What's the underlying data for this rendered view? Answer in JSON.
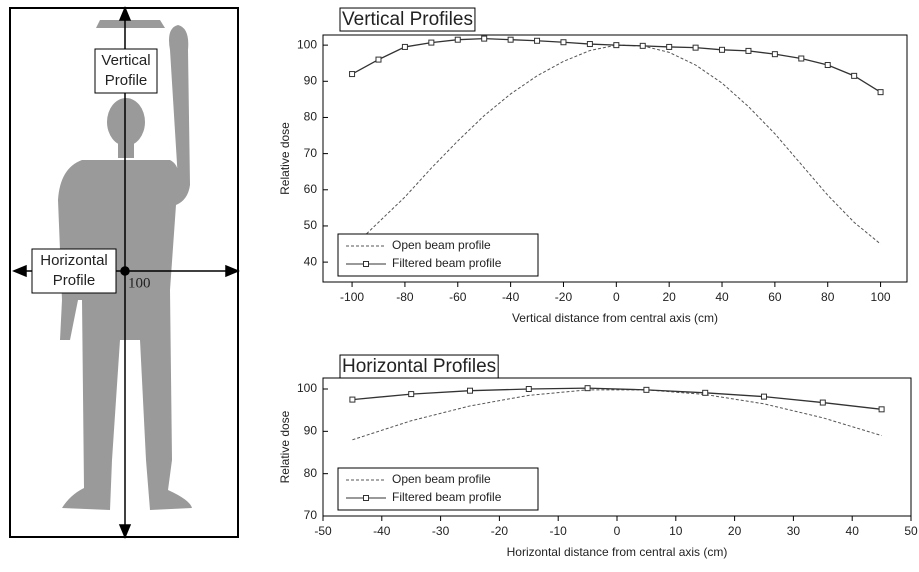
{
  "diagram": {
    "vertical_label": [
      "Vertical",
      "Profile"
    ],
    "horizontal_label": [
      "Horizontal",
      "Profile"
    ],
    "center_value": "100"
  },
  "chart_data": [
    {
      "type": "line",
      "title": "Vertical Profiles",
      "x_label": "Vertical distance from central axis (cm)",
      "y_label": "Relative dose",
      "x": [
        -100,
        -90,
        -80,
        -70,
        -60,
        -50,
        -40,
        -30,
        -20,
        -10,
        0,
        10,
        20,
        30,
        40,
        50,
        60,
        70,
        80,
        90,
        100
      ],
      "series": [
        {
          "name": "Open beam profile",
          "color": "#555555",
          "style": "dashed",
          "marker": "none",
          "values": [
            44,
            51,
            58,
            66,
            73.5,
            80.5,
            86.5,
            91.5,
            95.5,
            98.5,
            100,
            99.8,
            98,
            94.5,
            89.5,
            83,
            75.5,
            67,
            58.5,
            51,
            45
          ]
        },
        {
          "name": "Filtered beam profile",
          "color": "#333333",
          "style": "solid",
          "marker": "square",
          "values": [
            92,
            96,
            99.5,
            100.7,
            101.5,
            101.8,
            101.5,
            101.2,
            100.8,
            100.3,
            100,
            99.8,
            99.5,
            99.3,
            98.7,
            98.4,
            97.5,
            96.3,
            94.5,
            91.5,
            87
          ]
        }
      ],
      "xlim": [
        -111,
        110
      ],
      "ylim": [
        34.5,
        102.8
      ],
      "xticks": [
        -100,
        -80,
        -60,
        -40,
        -20,
        0,
        20,
        40,
        60,
        80,
        100
      ],
      "yticks": [
        40,
        50,
        60,
        70,
        80,
        90,
        100
      ],
      "legend": "lower left",
      "grid": false
    },
    {
      "type": "line",
      "title": "Horizontal Profiles",
      "x_label": "Horizontal distance from central axis (cm)",
      "y_label": "Relative dose",
      "x": [
        -45,
        -35,
        -25,
        -15,
        -5,
        5,
        15,
        25,
        35,
        45
      ],
      "series": [
        {
          "name": "Open beam profile",
          "color": "#555555",
          "style": "dashed",
          "marker": "none",
          "values": [
            88,
            92.5,
            96,
            98.5,
            99.8,
            99.8,
            98.7,
            96.5,
            93.2,
            89
          ]
        },
        {
          "name": "Filtered beam profile",
          "color": "#333333",
          "style": "solid",
          "marker": "square",
          "values": [
            97.5,
            98.8,
            99.6,
            100,
            100.2,
            99.8,
            99.1,
            98.2,
            96.8,
            95.2
          ]
        }
      ],
      "xlim": [
        -50,
        50
      ],
      "ylim": [
        70,
        102.6
      ],
      "xticks": [
        -50,
        -40,
        -30,
        -20,
        -10,
        0,
        10,
        20,
        30,
        40,
        50
      ],
      "yticks": [
        70,
        80,
        90,
        100
      ],
      "legend": "lower left",
      "grid": false
    }
  ]
}
